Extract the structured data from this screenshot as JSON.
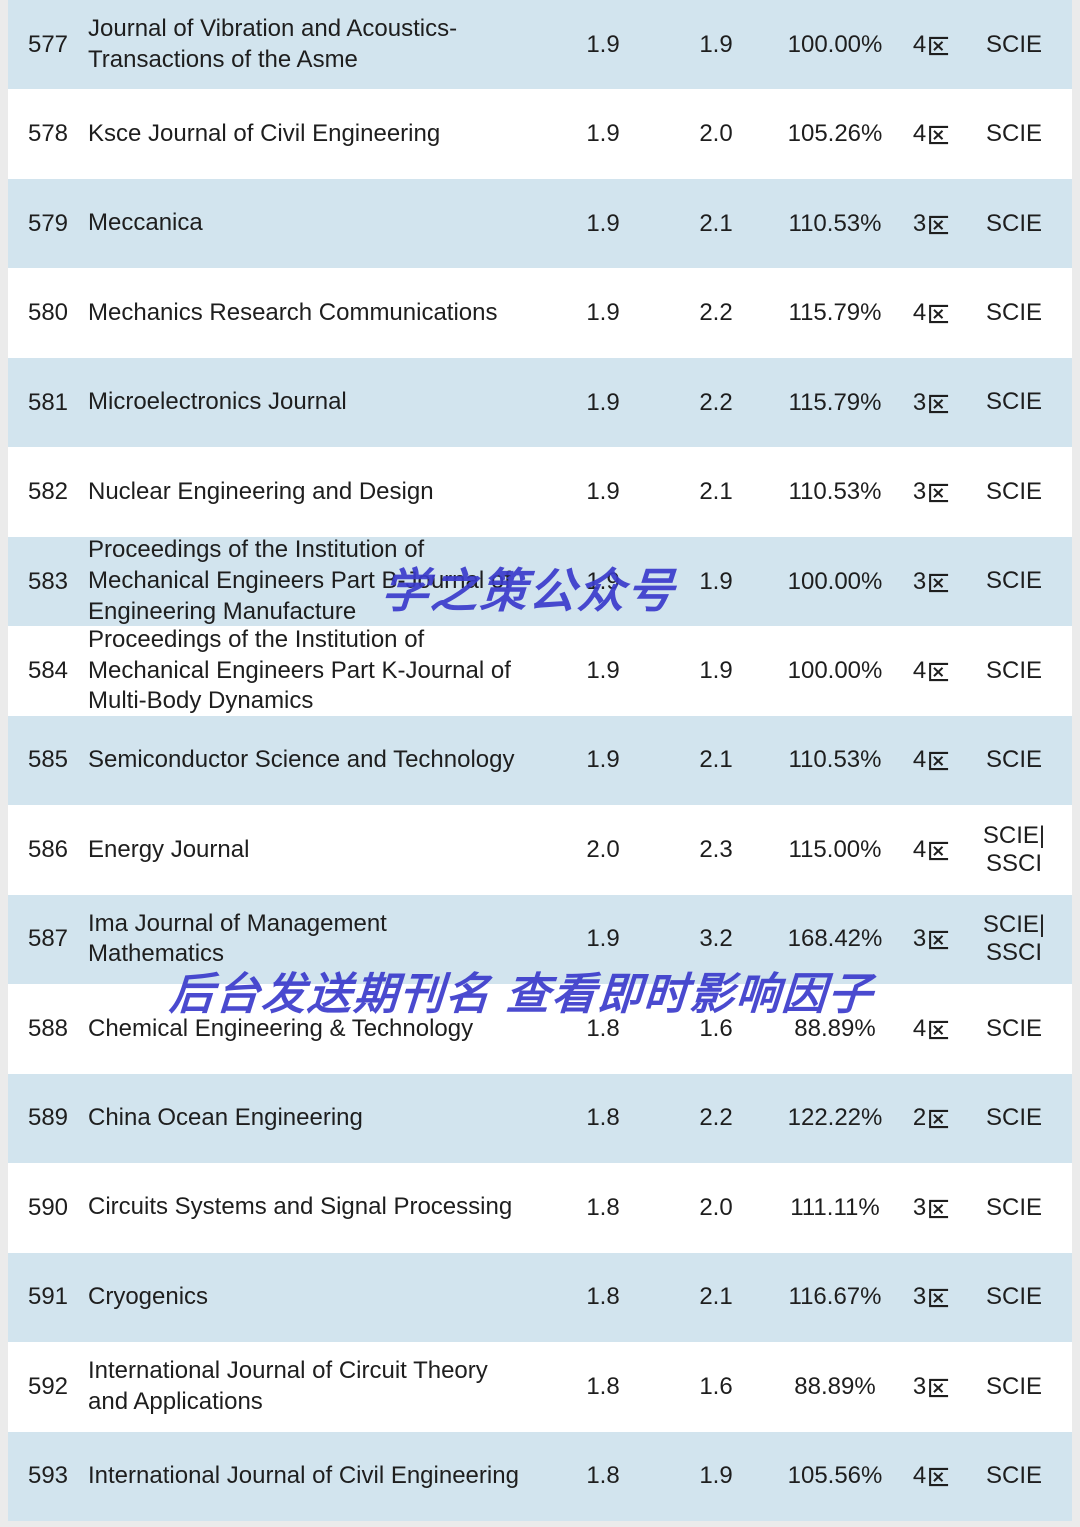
{
  "page": {
    "background_color": "#ebebeb",
    "row_alt_color": "#d2e4ee",
    "row_plain_color": "#ffffff",
    "text_color": "#1e1e1e",
    "watermark_color": "#3b3bcc"
  },
  "watermarks": {
    "center": "学之策公众号",
    "lower": "后台发送期刊名 查看即时影响因子"
  },
  "table": {
    "rows": [
      {
        "rank": "577",
        "name": "Journal of Vibration and Acoustics-Transactions of the Asme",
        "if1": "1.9",
        "if2": "1.9",
        "percent": "100.00%",
        "zone": "4区",
        "index": "SCIE"
      },
      {
        "rank": "578",
        "name": "Ksce Journal of Civil Engineering",
        "if1": "1.9",
        "if2": "2.0",
        "percent": "105.26%",
        "zone": "4区",
        "index": "SCIE"
      },
      {
        "rank": "579",
        "name": "Meccanica",
        "if1": "1.9",
        "if2": "2.1",
        "percent": "110.53%",
        "zone": "3区",
        "index": "SCIE"
      },
      {
        "rank": "580",
        "name": "Mechanics Research Communications",
        "if1": "1.9",
        "if2": "2.2",
        "percent": "115.79%",
        "zone": "4区",
        "index": "SCIE"
      },
      {
        "rank": "581",
        "name": "Microelectronics Journal",
        "if1": "1.9",
        "if2": "2.2",
        "percent": "115.79%",
        "zone": "3区",
        "index": "SCIE"
      },
      {
        "rank": "582",
        "name": "Nuclear Engineering and Design",
        "if1": "1.9",
        "if2": "2.1",
        "percent": "110.53%",
        "zone": "3区",
        "index": "SCIE"
      },
      {
        "rank": "583",
        "name": "Proceedings of the Institution of Mechanical Engineers Part B-Journal of Engineering Manufacture",
        "if1": "1.9",
        "if2": "1.9",
        "percent": "100.00%",
        "zone": "3区",
        "index": "SCIE"
      },
      {
        "rank": "584",
        "name": "Proceedings of the Institution of Mechanical Engineers Part K-Journal of Multi-Body Dynamics",
        "if1": "1.9",
        "if2": "1.9",
        "percent": "100.00%",
        "zone": "4区",
        "index": "SCIE"
      },
      {
        "rank": "585",
        "name": "Semiconductor Science and Technology",
        "if1": "1.9",
        "if2": "2.1",
        "percent": "110.53%",
        "zone": "4区",
        "index": "SCIE"
      },
      {
        "rank": "586",
        "name": "Energy Journal",
        "if1": "2.0",
        "if2": "2.3",
        "percent": "115.00%",
        "zone": "4区",
        "index": "SCIE|\nSSCI"
      },
      {
        "rank": "587",
        "name": "Ima Journal of Management Mathematics",
        "if1": "1.9",
        "if2": "3.2",
        "percent": "168.42%",
        "zone": "3区",
        "index": "SCIE|\nSSCI"
      },
      {
        "rank": "588",
        "name": "Chemical Engineering & Technology",
        "if1": "1.8",
        "if2": "1.6",
        "percent": "88.89%",
        "zone": "4区",
        "index": "SCIE"
      },
      {
        "rank": "589",
        "name": "China Ocean Engineering",
        "if1": "1.8",
        "if2": "2.2",
        "percent": "122.22%",
        "zone": "2区",
        "index": "SCIE"
      },
      {
        "rank": "590",
        "name": "Circuits Systems and Signal Processing",
        "if1": "1.8",
        "if2": "2.0",
        "percent": "111.11%",
        "zone": "3区",
        "index": "SCIE"
      },
      {
        "rank": "591",
        "name": "Cryogenics",
        "if1": "1.8",
        "if2": "2.1",
        "percent": "116.67%",
        "zone": "3区",
        "index": "SCIE"
      },
      {
        "rank": "592",
        "name": "International Journal of Circuit Theory and Applications",
        "if1": "1.8",
        "if2": "1.6",
        "percent": "88.89%",
        "zone": "3区",
        "index": "SCIE"
      },
      {
        "rank": "593",
        "name": "International Journal of Civil Engineering",
        "if1": "1.8",
        "if2": "1.9",
        "percent": "105.56%",
        "zone": "4区",
        "index": "SCIE"
      }
    ]
  }
}
